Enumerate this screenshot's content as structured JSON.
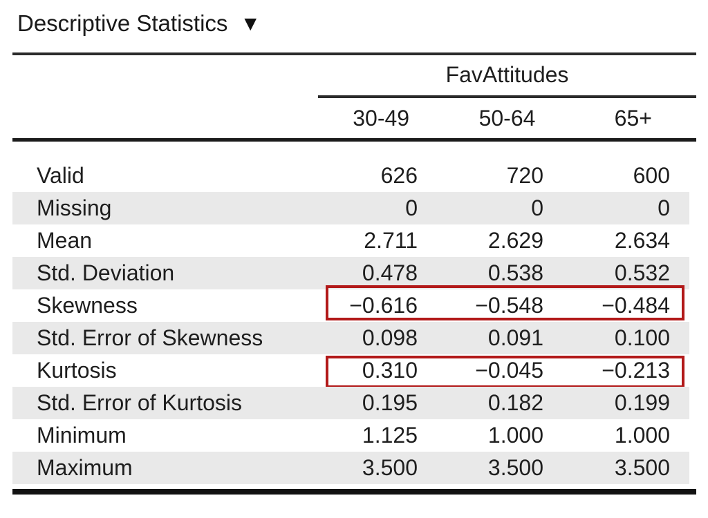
{
  "title": {
    "text": "Descriptive Statistics",
    "dropdown_icon": "▼"
  },
  "table": {
    "group_header": "FavAttitudes",
    "columns": [
      "30-49",
      "50-64",
      "65+"
    ],
    "rows": [
      {
        "label": "Valid",
        "values": [
          "626",
          "720",
          "600"
        ],
        "highlighted": false
      },
      {
        "label": "Missing",
        "values": [
          "0",
          "0",
          "0"
        ],
        "highlighted": false
      },
      {
        "label": "Mean",
        "values": [
          "2.711",
          "2.629",
          "2.634"
        ],
        "highlighted": false
      },
      {
        "label": "Std. Deviation",
        "values": [
          "0.478",
          "0.538",
          "0.532"
        ],
        "highlighted": false
      },
      {
        "label": "Skewness",
        "values": [
          "−0.616",
          "−0.548",
          "−0.484"
        ],
        "highlighted": true
      },
      {
        "label": "Std. Error of Skewness",
        "values": [
          "0.098",
          "0.091",
          "0.100"
        ],
        "highlighted": false
      },
      {
        "label": "Kurtosis",
        "values": [
          "0.310",
          "−0.045",
          "−0.213"
        ],
        "highlighted": true
      },
      {
        "label": "Std. Error of Kurtosis",
        "values": [
          "0.195",
          "0.182",
          "0.199"
        ],
        "highlighted": false
      },
      {
        "label": "Minimum",
        "values": [
          "1.125",
          "1.000",
          "1.000"
        ],
        "highlighted": false
      },
      {
        "label": "Maximum",
        "values": [
          "3.500",
          "3.500",
          "3.500"
        ],
        "highlighted": false
      }
    ],
    "colors": {
      "highlight_border": "#b21919",
      "zebra_stripe": "#e9e9e9",
      "rule": "#1b1b1b"
    }
  }
}
